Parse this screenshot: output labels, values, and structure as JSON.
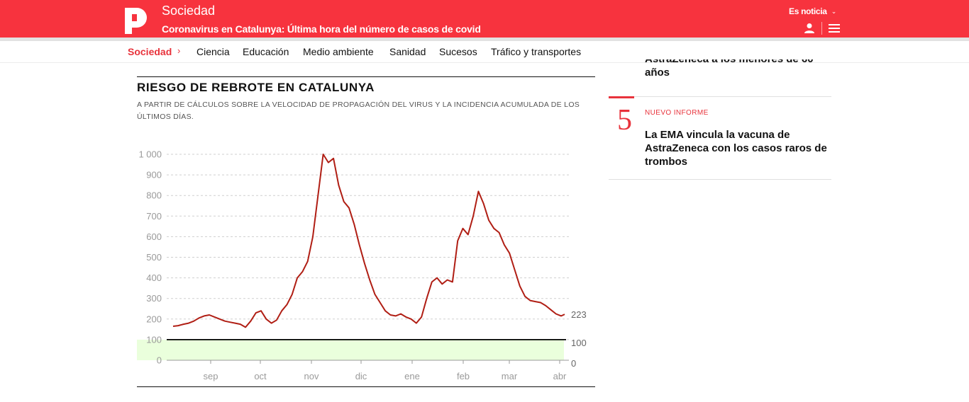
{
  "header": {
    "section": "Sociedad",
    "headline": "Coronavirus en Catalunya: Última hora del número de casos de covid",
    "es_noticia": "Es noticia",
    "brand_color": "#f7333e"
  },
  "subnav": {
    "current": "Sociedad",
    "items": [
      "Ciencia",
      "Educación",
      "Medio ambiente",
      "Sanidad",
      "Sucesos",
      "Tráfico y transportes"
    ]
  },
  "chart_data": {
    "type": "line",
    "title": "RIESGO DE REBROTE EN CATALUNYA",
    "subtitle": "A PARTIR DE CÁLCULOS SOBRE LA VELOCIDAD DE PROPAGACIÓN DEL VIRUS Y LA INCIDENCIA ACUMULADA DE LOS ÚLTIMOS DÍAS.",
    "x_ticks": [
      "sep",
      "oct",
      "nov",
      "dic",
      "ene",
      "feb",
      "mar",
      "abr"
    ],
    "y_ticks": [
      "0",
      "100",
      "200",
      "300",
      "400",
      "500",
      "600",
      "700",
      "800",
      "900",
      "1 000"
    ],
    "ylim": [
      0,
      1000
    ],
    "grid": true,
    "line_color": "#b01e14",
    "threshold": {
      "value": 100,
      "label": "100",
      "color": "#000000"
    },
    "low_band": {
      "from": 0,
      "to": 100,
      "label": "0",
      "color": "#eaffdc"
    },
    "last_label": "223",
    "series": [
      {
        "x": [
          0,
          3,
          6,
          9,
          12,
          15,
          18,
          21,
          24,
          27,
          30,
          33,
          36,
          39,
          42,
          45,
          48,
          51,
          54,
          57,
          60,
          63,
          66,
          69,
          72,
          75,
          78,
          81,
          84,
          87,
          90,
          93,
          96,
          99,
          102,
          105,
          108,
          111,
          114,
          117,
          120,
          123,
          126,
          129,
          132,
          135,
          138,
          141,
          144,
          147,
          150,
          153,
          156,
          159,
          162,
          165,
          168,
          171,
          174,
          177,
          180,
          183,
          186,
          189,
          192,
          195,
          198,
          201,
          204,
          207,
          210,
          213,
          216,
          219,
          222,
          225,
          227
        ],
        "values": [
          165,
          168,
          175,
          180,
          190,
          205,
          215,
          220,
          210,
          200,
          190,
          185,
          180,
          175,
          160,
          190,
          230,
          240,
          200,
          180,
          195,
          240,
          270,
          320,
          400,
          430,
          480,
          600,
          800,
          1000,
          960,
          980,
          850,
          770,
          740,
          660,
          560,
          470,
          390,
          320,
          280,
          240,
          220,
          215,
          225,
          210,
          200,
          180,
          210,
          300,
          380,
          400,
          370,
          390,
          380,
          580,
          640,
          610,
          700,
          820,
          760,
          680,
          640,
          620,
          560,
          520,
          440,
          360,
          310,
          290,
          285,
          280,
          265,
          245,
          225,
          215,
          223
        ]
      }
    ]
  },
  "sidebar": {
    "top_title": "AstraZeneca a los menores de 60 años",
    "item_number": "5",
    "item_kicker": "NUEVO INFORME",
    "item_title": "La EMA vincula la vacuna de AstraZeneca con los casos raros de trombos"
  }
}
